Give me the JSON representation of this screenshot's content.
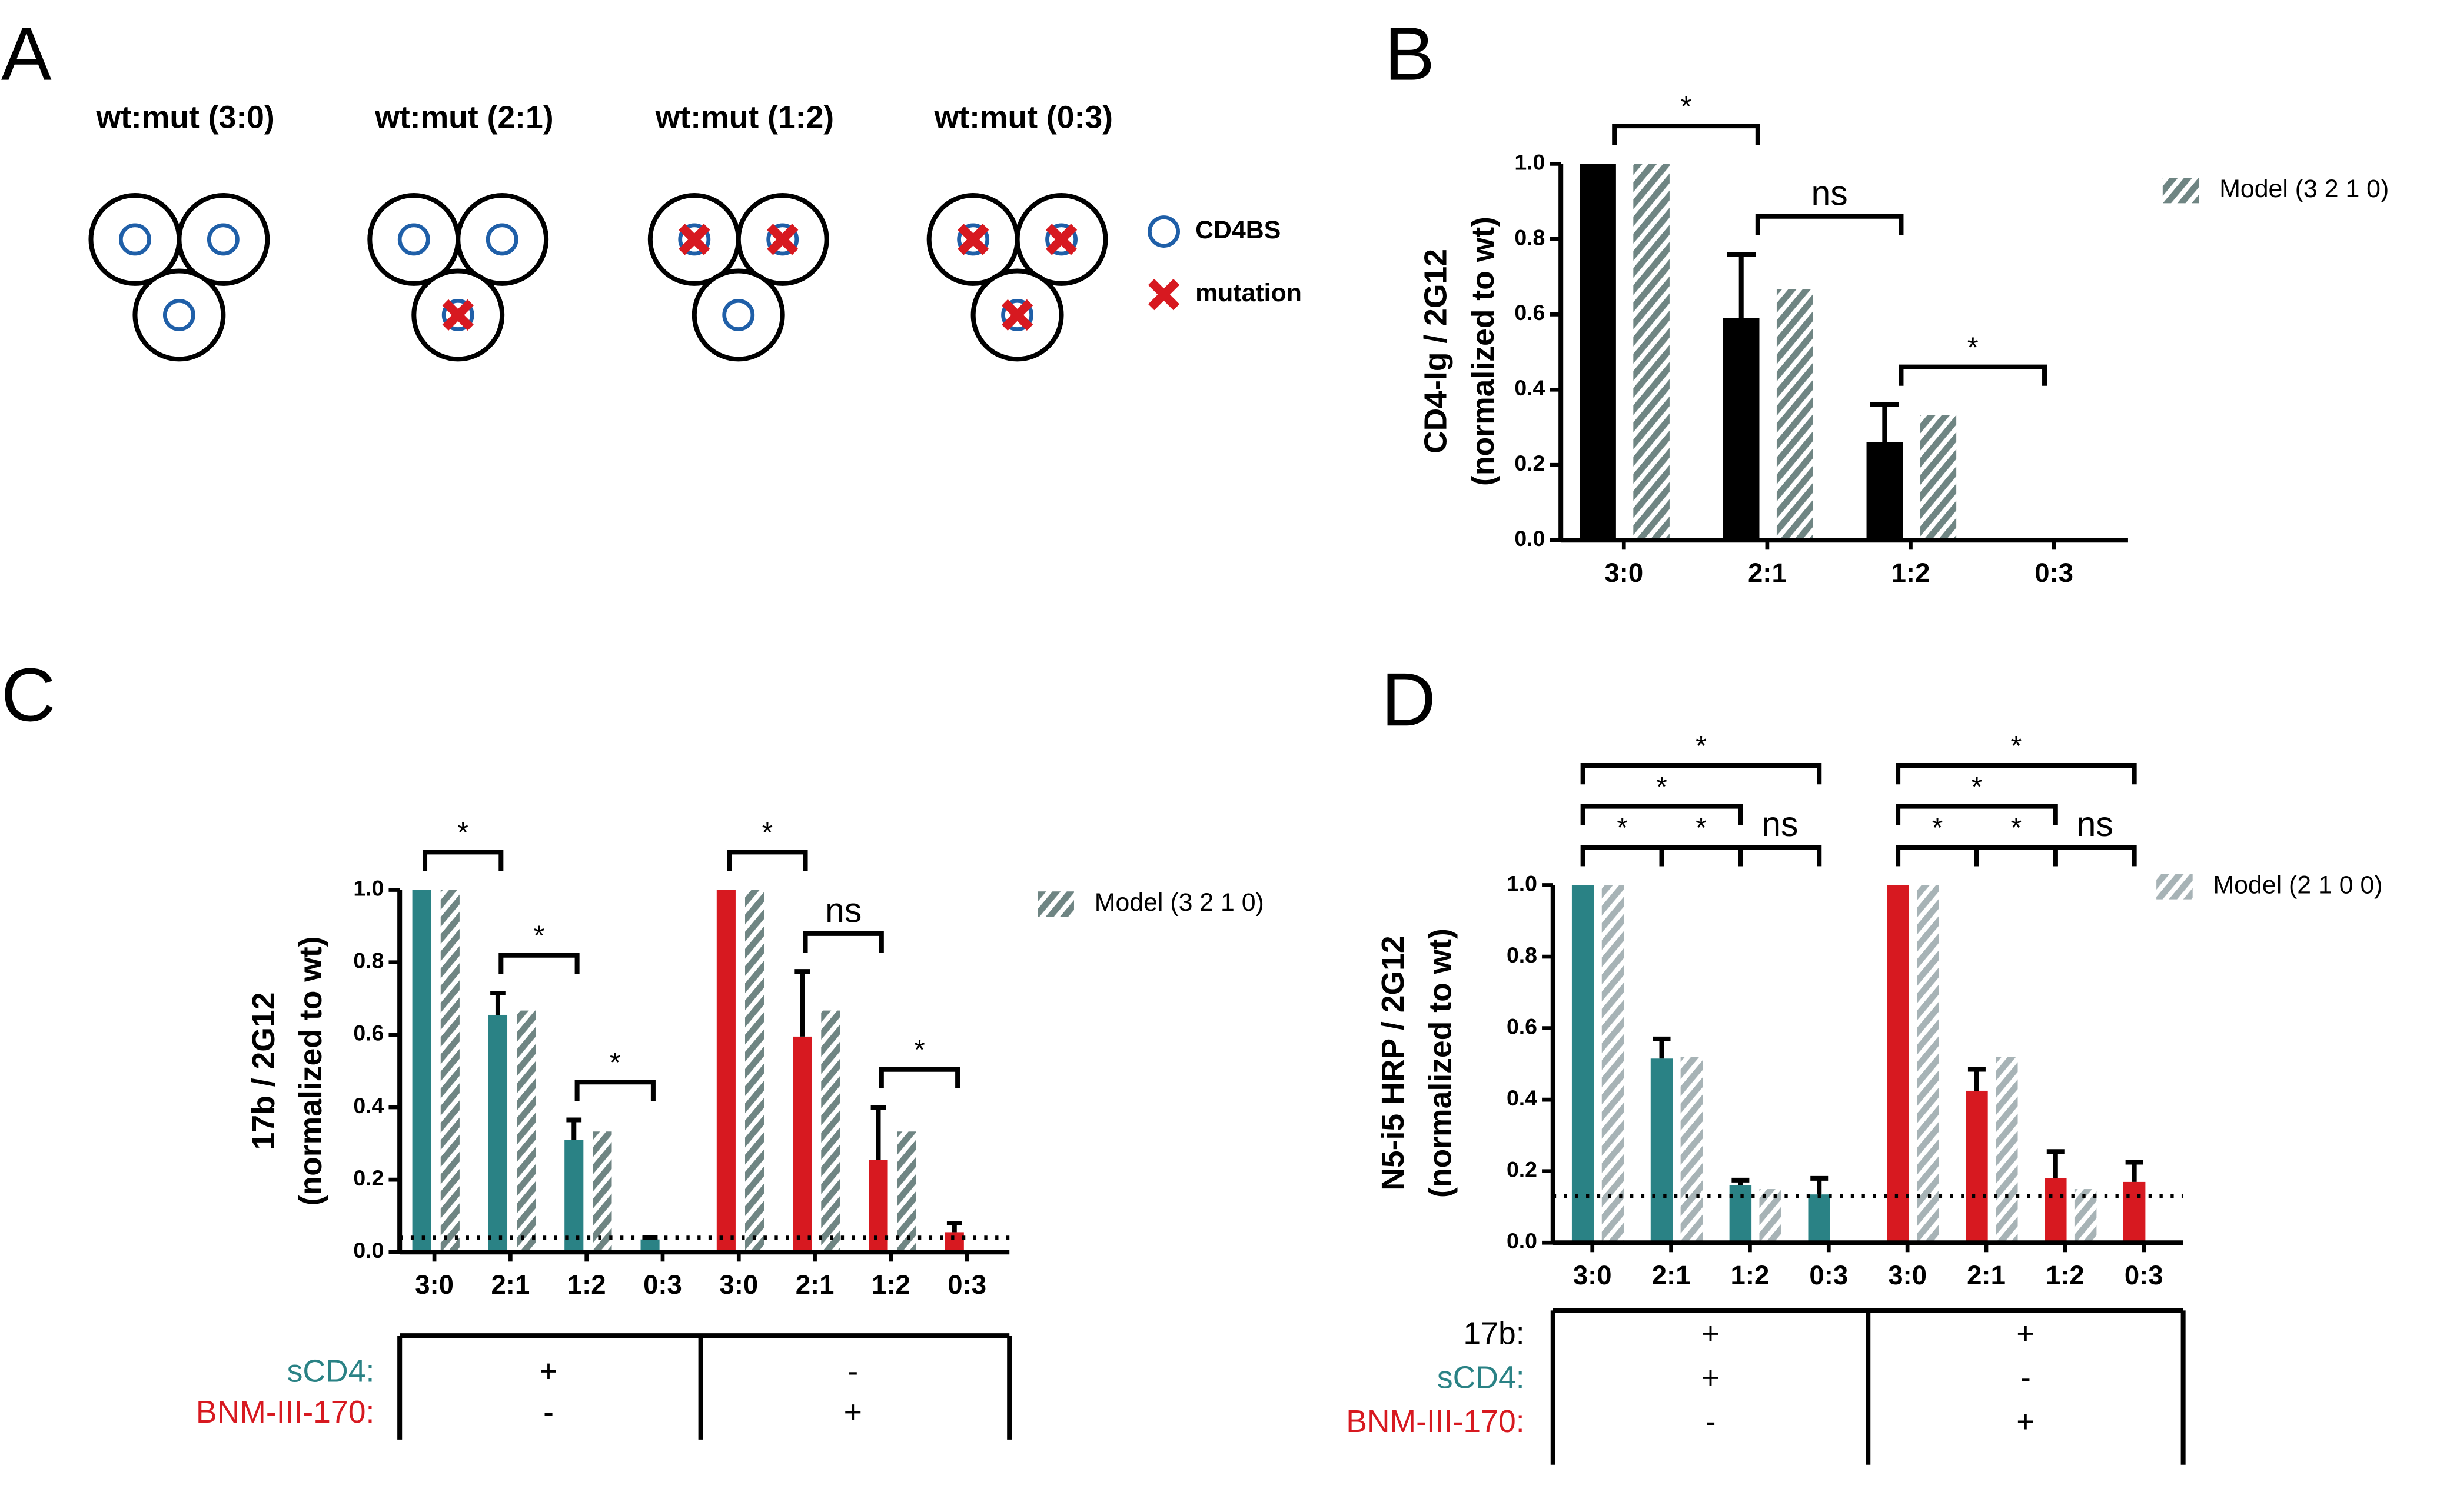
{
  "panel_a": {
    "label": "A",
    "titles": [
      "wt:mut (3:0)",
      "wt:mut (2:1)",
      "wt:mut (1:2)",
      "wt:mut (0:3)"
    ],
    "legend": [
      "CD4BS",
      "mutation"
    ]
  },
  "chart_data": [
    {
      "panel_label": "B",
      "type": "bar",
      "ylabel": [
        "CD4-Ig / 2G12",
        "(normalized to wt)"
      ],
      "categories": [
        "3:0",
        "2:1",
        "1:2",
        "0:3"
      ],
      "series": [
        {
          "color": "#000000",
          "values": [
            1.0,
            0.59,
            0.26,
            0
          ],
          "errors": [
            null,
            0.17,
            0.1,
            null
          ]
        },
        {
          "name": "Model (3 2 1 0)",
          "color": "#6f8583",
          "pattern": "hatch",
          "values": [
            1.0,
            0.667,
            0.333,
            0
          ]
        }
      ],
      "ylim": [
        0,
        1.0
      ],
      "yticks": [
        {
          "value": 0,
          "label": "0.0"
        },
        0.2,
        0.4,
        0.6,
        0.8,
        {
          "value": 1,
          "label": "1.0"
        }
      ],
      "brackets": [
        {
          "from": 0,
          "to": 1,
          "label": "*"
        },
        {
          "from": 1,
          "to": 2,
          "label": "ns"
        },
        {
          "from": 2,
          "to": 3,
          "label": "*"
        }
      ],
      "bracket_layout": "stepped"
    },
    {
      "panel_label": "C",
      "type": "bar",
      "ylabel": [
        "17b / 2G12",
        "(normalized to wt)"
      ],
      "categories": [
        "3:0",
        "2:1",
        "1:2",
        "0:3",
        "3:0",
        "2:1",
        "1:2",
        "0:3"
      ],
      "series": [
        {
          "colors": [
            "#2a8285",
            "#2a8285",
            "#2a8285",
            "#2a8285",
            "#d71920",
            "#d71920",
            "#d71920",
            "#d71920"
          ],
          "values": [
            1.0,
            0.655,
            0.31,
            0.035,
            1.0,
            0.595,
            0.255,
            0.055
          ],
          "errors": [
            null,
            0.06,
            0.055,
            0.005,
            null,
            0.18,
            0.145,
            0.025
          ]
        },
        {
          "name": "Model (3 2 1 0)",
          "color": "#6f8583",
          "pattern": "hatch",
          "values": [
            1.0,
            0.667,
            0.333,
            0,
            1.0,
            0.667,
            0.333,
            0
          ]
        }
      ],
      "ylim": [
        0,
        1.0
      ],
      "yticks": [
        {
          "value": 0,
          "label": "0.0"
        },
        0.2,
        0.4,
        0.6,
        0.8,
        {
          "value": 1,
          "label": "1.0"
        }
      ],
      "hline": 0.04,
      "brackets": [
        {
          "from": 0,
          "to": 1,
          "label": "*"
        },
        {
          "from": 1,
          "to": 2,
          "label": "*"
        },
        {
          "from": 2,
          "to": 3,
          "label": "*"
        },
        {
          "from": 4,
          "to": 5,
          "label": "*"
        },
        {
          "from": 5,
          "to": 6,
          "label": "ns"
        },
        {
          "from": 6,
          "to": 7,
          "label": "*"
        }
      ],
      "bracket_layout": "stepped",
      "table": {
        "rows": [
          {
            "label": "sCD4:",
            "color": "#2a8285",
            "values": [
              "+",
              "-"
            ]
          },
          {
            "label": "BNM-III-170:",
            "color": "#d71920",
            "values": [
              "-",
              "+"
            ]
          }
        ]
      }
    },
    {
      "panel_label": "D",
      "type": "bar",
      "ylabel": [
        "N5-i5 HRP / 2G12",
        "(normalized to wt)"
      ],
      "categories": [
        "3:0",
        "2:1",
        "1:2",
        "0:3",
        "3:0",
        "2:1",
        "1:2",
        "0:3"
      ],
      "series": [
        {
          "colors": [
            "#2a8285",
            "#2a8285",
            "#2a8285",
            "#2a8285",
            "#d71920",
            "#d71920",
            "#d71920",
            "#d71920"
          ],
          "values": [
            1.0,
            0.515,
            0.16,
            0.135,
            1.0,
            0.425,
            0.18,
            0.17
          ],
          "errors": [
            null,
            0.055,
            0.015,
            0.045,
            null,
            0.06,
            0.075,
            0.055
          ]
        },
        {
          "name": "Model (2 1 0 0)",
          "color": "#a7b3b6",
          "pattern": "hatch",
          "values": [
            1.0,
            0.52,
            0.15,
            0,
            1.0,
            0.52,
            0.15,
            0
          ]
        }
      ],
      "ylim": [
        0,
        1.0
      ],
      "yticks": [
        {
          "value": 0,
          "label": "0.0"
        },
        0.2,
        0.4,
        0.6,
        0.8,
        {
          "value": 1,
          "label": "1.0"
        }
      ],
      "hline": 0.13,
      "brackets": [
        {
          "from": 0,
          "to": 3,
          "label": "*"
        },
        {
          "from": 0,
          "to": 2,
          "label": "*"
        },
        {
          "from": 0,
          "to": 1,
          "label": "*"
        },
        {
          "from": 1,
          "to": 2,
          "label": "*"
        },
        {
          "from": 2,
          "to": 3,
          "label": "ns"
        },
        {
          "from": 4,
          "to": 7,
          "label": "*"
        },
        {
          "from": 4,
          "to": 6,
          "label": "*"
        },
        {
          "from": 4,
          "to": 5,
          "label": "*"
        },
        {
          "from": 5,
          "to": 6,
          "label": "*"
        },
        {
          "from": 6,
          "to": 7,
          "label": "ns"
        }
      ],
      "bracket_layout": "tiered",
      "table": {
        "rows": [
          {
            "label": "17b:",
            "color": "#000000",
            "values": [
              "+",
              "+"
            ]
          },
          {
            "label": "sCD4:",
            "color": "#2a8285",
            "values": [
              "+",
              "-"
            ]
          },
          {
            "label": "BNM-III-170:",
            "color": "#d71920",
            "values": [
              "-",
              "+"
            ]
          }
        ]
      }
    }
  ]
}
